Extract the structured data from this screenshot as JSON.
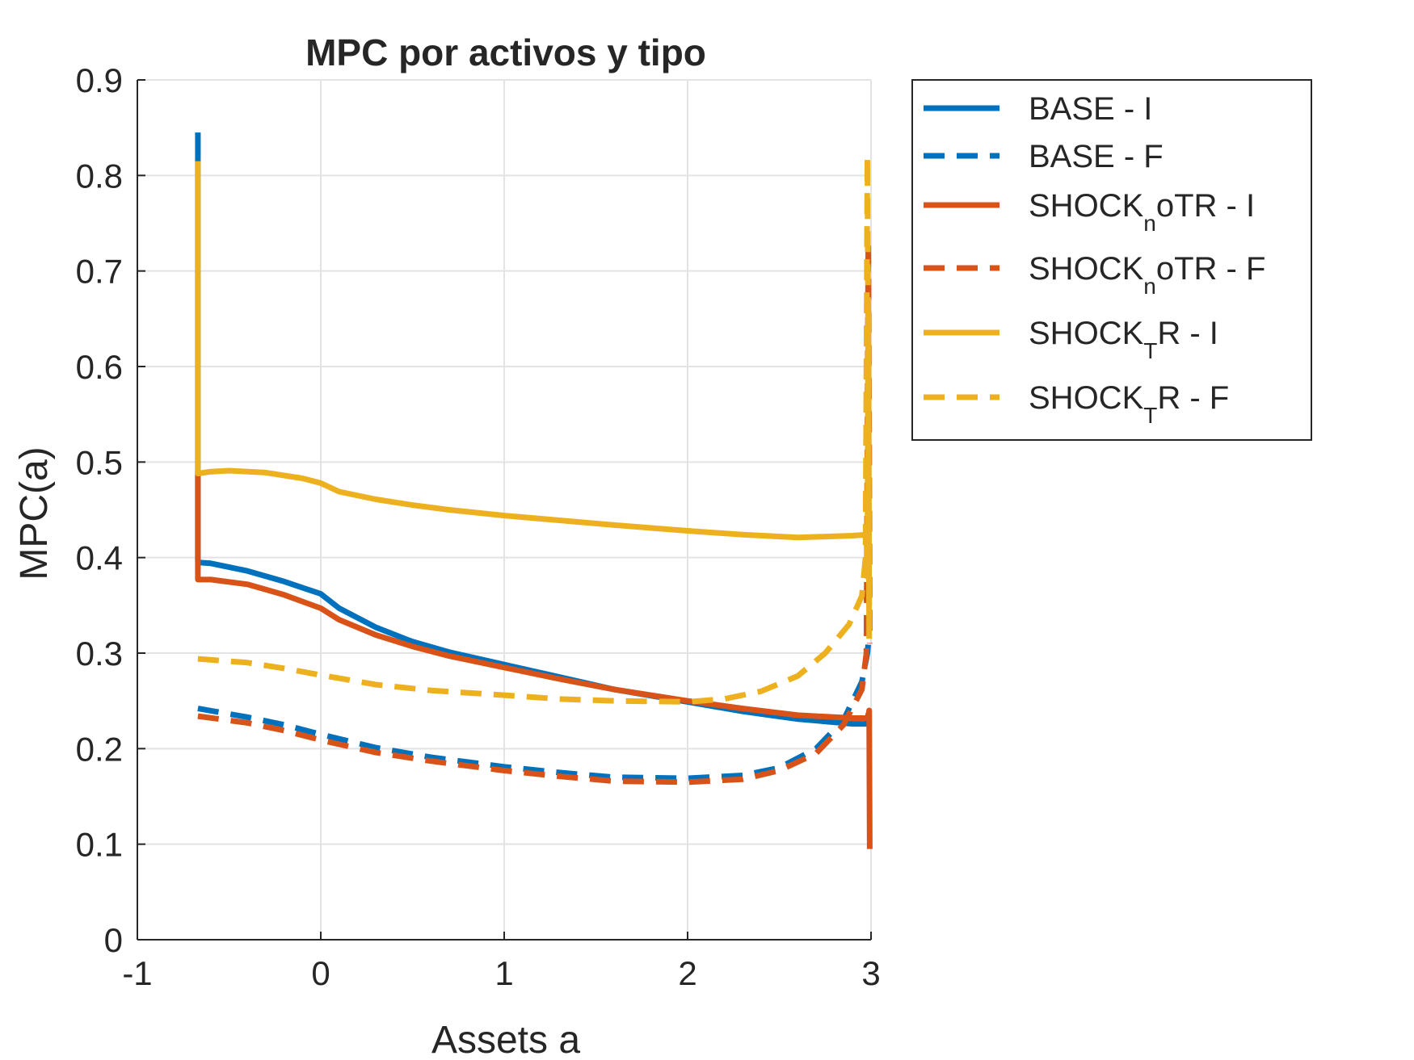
{
  "chart_data": {
    "type": "line",
    "title": "MPC por activos y tipo",
    "xlabel": "Assets a",
    "ylabel": "MPC(a)",
    "xlim": [
      -1,
      3
    ],
    "ylim": [
      0,
      0.9
    ],
    "xticks": [
      -1,
      0,
      1,
      2,
      3
    ],
    "yticks": [
      0,
      0.1,
      0.2,
      0.3,
      0.4,
      0.5,
      0.6,
      0.7,
      0.8,
      0.9
    ],
    "xtick_labels": [
      "-1",
      "0",
      "1",
      "2",
      "3"
    ],
    "ytick_labels": [
      "0",
      "0.1",
      "0.2",
      "0.3",
      "0.4",
      "0.5",
      "0.6",
      "0.7",
      "0.8",
      "0.9"
    ],
    "grid": true,
    "legend_position": "outside-right-top",
    "series": [
      {
        "name": "BASE - I",
        "legend_main": "BASE - I",
        "legend_sub": "",
        "legend_rest": "",
        "color": "#0072BD",
        "dash": "solid",
        "points": [
          [
            -0.67,
            0.845
          ],
          [
            -0.67,
            0.395
          ],
          [
            -0.6,
            0.394
          ],
          [
            -0.4,
            0.386
          ],
          [
            -0.2,
            0.375
          ],
          [
            0,
            0.362
          ],
          [
            0.1,
            0.347
          ],
          [
            0.3,
            0.327
          ],
          [
            0.5,
            0.312
          ],
          [
            0.7,
            0.301
          ],
          [
            1.0,
            0.288
          ],
          [
            1.3,
            0.275
          ],
          [
            1.6,
            0.262
          ],
          [
            2.0,
            0.249
          ],
          [
            2.3,
            0.239
          ],
          [
            2.6,
            0.231
          ],
          [
            2.9,
            0.226
          ],
          [
            2.98,
            0.226
          ],
          [
            2.985,
            0.236
          ],
          [
            2.99,
            0.228
          ]
        ]
      },
      {
        "name": "BASE - F",
        "legend_main": "BASE - F",
        "legend_sub": "",
        "legend_rest": "",
        "color": "#0072BD",
        "dash": "dashed",
        "points": [
          [
            -0.67,
            0.242
          ],
          [
            -0.4,
            0.233
          ],
          [
            -0.2,
            0.225
          ],
          [
            0,
            0.215
          ],
          [
            0.3,
            0.201
          ],
          [
            0.6,
            0.191
          ],
          [
            1.0,
            0.181
          ],
          [
            1.3,
            0.175
          ],
          [
            1.6,
            0.17
          ],
          [
            2.0,
            0.169
          ],
          [
            2.3,
            0.172
          ],
          [
            2.5,
            0.18
          ],
          [
            2.7,
            0.2
          ],
          [
            2.85,
            0.23
          ],
          [
            2.95,
            0.27
          ],
          [
            2.98,
            0.3
          ],
          [
            2.99,
            0.32
          ]
        ]
      },
      {
        "name": "SHOCK_noTR - I",
        "legend_main": "SHOCK",
        "legend_sub": "n",
        "legend_rest": "oTR - I",
        "color": "#D95319",
        "dash": "solid",
        "points": [
          [
            -0.67,
            0.49
          ],
          [
            -0.67,
            0.377
          ],
          [
            -0.6,
            0.377
          ],
          [
            -0.4,
            0.372
          ],
          [
            -0.2,
            0.361
          ],
          [
            0,
            0.347
          ],
          [
            0.1,
            0.335
          ],
          [
            0.3,
            0.319
          ],
          [
            0.5,
            0.307
          ],
          [
            0.7,
            0.297
          ],
          [
            1.0,
            0.285
          ],
          [
            1.3,
            0.273
          ],
          [
            1.6,
            0.262
          ],
          [
            2.0,
            0.25
          ],
          [
            2.3,
            0.242
          ],
          [
            2.6,
            0.235
          ],
          [
            2.9,
            0.232
          ],
          [
            2.985,
            0.232
          ],
          [
            2.99,
            0.24
          ],
          [
            2.993,
            0.095
          ]
        ]
      },
      {
        "name": "SHOCK_noTR - F",
        "legend_main": "SHOCK",
        "legend_sub": "n",
        "legend_rest": "oTR - F",
        "color": "#D95319",
        "dash": "dashed",
        "points": [
          [
            -0.67,
            0.234
          ],
          [
            -0.4,
            0.227
          ],
          [
            -0.2,
            0.219
          ],
          [
            0,
            0.209
          ],
          [
            0.3,
            0.196
          ],
          [
            0.6,
            0.187
          ],
          [
            1.0,
            0.177
          ],
          [
            1.3,
            0.171
          ],
          [
            1.6,
            0.166
          ],
          [
            2.0,
            0.165
          ],
          [
            2.3,
            0.168
          ],
          [
            2.5,
            0.177
          ],
          [
            2.7,
            0.195
          ],
          [
            2.85,
            0.225
          ],
          [
            2.95,
            0.262
          ],
          [
            2.975,
            0.3
          ],
          [
            2.985,
            0.73
          ],
          [
            2.99,
            0.52
          ],
          [
            2.993,
            0.31
          ]
        ]
      },
      {
        "name": "SHOCK_TR - I",
        "legend_main": "SHOCK",
        "legend_sub": "T",
        "legend_rest": "R - I",
        "color": "#EDB120",
        "dash": "solid",
        "points": [
          [
            -0.67,
            0.815
          ],
          [
            -0.67,
            0.488
          ],
          [
            -0.6,
            0.49
          ],
          [
            -0.5,
            0.491
          ],
          [
            -0.3,
            0.489
          ],
          [
            -0.1,
            0.483
          ],
          [
            0,
            0.478
          ],
          [
            0.1,
            0.469
          ],
          [
            0.3,
            0.461
          ],
          [
            0.5,
            0.455
          ],
          [
            0.7,
            0.45
          ],
          [
            1.0,
            0.444
          ],
          [
            1.3,
            0.439
          ],
          [
            1.6,
            0.434
          ],
          [
            2.0,
            0.428
          ],
          [
            2.3,
            0.424
          ],
          [
            2.6,
            0.421
          ],
          [
            2.9,
            0.423
          ],
          [
            2.975,
            0.424
          ],
          [
            2.98,
            0.38
          ],
          [
            2.985,
            0.67
          ],
          [
            2.99,
            0.315
          ]
        ]
      },
      {
        "name": "SHOCK_TR - F",
        "legend_main": "SHOCK",
        "legend_sub": "T",
        "legend_rest": "R - F",
        "color": "#EDB120",
        "dash": "dashed",
        "points": [
          [
            -0.67,
            0.294
          ],
          [
            -0.4,
            0.29
          ],
          [
            -0.2,
            0.284
          ],
          [
            0,
            0.277
          ],
          [
            0.3,
            0.267
          ],
          [
            0.6,
            0.261
          ],
          [
            1.0,
            0.256
          ],
          [
            1.3,
            0.252
          ],
          [
            1.6,
            0.25
          ],
          [
            2.0,
            0.249
          ],
          [
            2.2,
            0.252
          ],
          [
            2.4,
            0.26
          ],
          [
            2.6,
            0.276
          ],
          [
            2.75,
            0.3
          ],
          [
            2.88,
            0.33
          ],
          [
            2.95,
            0.36
          ],
          [
            2.97,
            0.4
          ],
          [
            2.98,
            0.82
          ],
          [
            2.985,
            0.6
          ],
          [
            2.99,
            0.35
          ]
        ]
      }
    ]
  }
}
